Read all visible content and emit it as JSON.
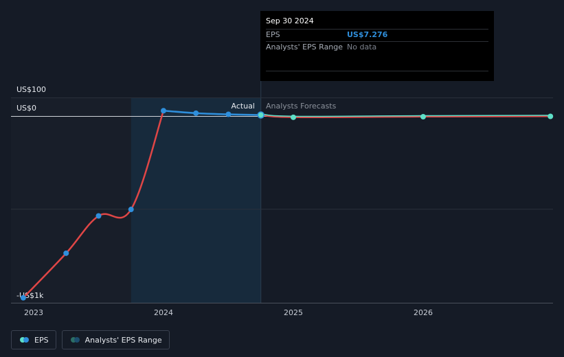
{
  "chart_data": {
    "type": "line",
    "y_axis_labels": [
      "US$100",
      "US$0",
      "-US$1k"
    ],
    "x_axis_labels": [
      "2023",
      "2024",
      "2025",
      "2026"
    ],
    "dividers": {
      "actual_label": "Actual",
      "forecast_label": "Analysts Forecasts"
    },
    "series": [
      {
        "name": "EPS",
        "color_past": "#e04646",
        "color_actual": "#2f8fdc",
        "points": [
          {
            "x": 2022.92,
            "y": -977
          },
          {
            "x": 2023.25,
            "y": -737
          },
          {
            "x": 2023.5,
            "y": -536
          },
          {
            "x": 2023.75,
            "y": -501
          },
          {
            "x": 2024.0,
            "y": 30
          },
          {
            "x": 2024.25,
            "y": 17
          },
          {
            "x": 2024.5,
            "y": 11
          },
          {
            "x": 2024.75,
            "y": 7.276
          }
        ]
      },
      {
        "name": "EPS forecast",
        "color": "#5fe0c8",
        "points": [
          {
            "x": 2024.75,
            "y": 7.276
          },
          {
            "x": 2025.0,
            "y": -5
          },
          {
            "x": 2026.0,
            "y": -2
          },
          {
            "x": 2026.98,
            "y": 0
          }
        ]
      }
    ],
    "y_range": [
      -1000,
      100
    ],
    "x_range": [
      2022.75,
      2026.98
    ]
  },
  "tooltip": {
    "date": "Sep 30 2024",
    "rows": [
      {
        "label": "EPS",
        "value": "US$7.276"
      },
      {
        "label": "Analysts' EPS Range",
        "value": "No data"
      }
    ]
  },
  "legend": [
    {
      "label": "EPS",
      "colors": [
        "#5fe0c8",
        "#2f8fdc"
      ]
    },
    {
      "label": "Analysts' EPS Range",
      "colors": [
        "#2c6e66",
        "#1c4e6e"
      ]
    }
  ]
}
